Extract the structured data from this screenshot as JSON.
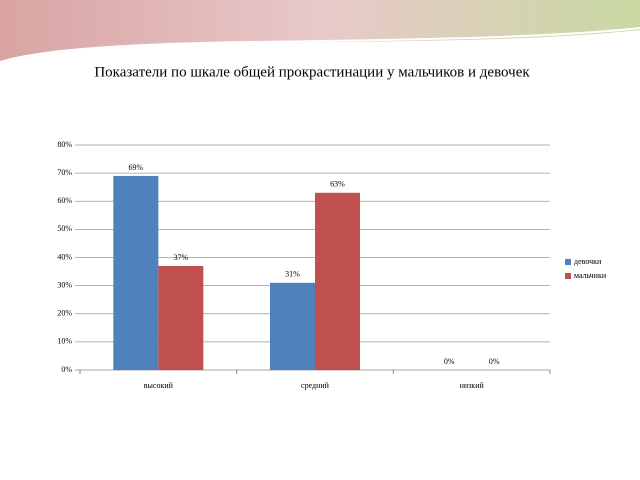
{
  "chart_data": {
    "type": "bar",
    "title": "Показатели по шкале общей прокрастинации у мальчиков и девочек",
    "categories": [
      "высокий",
      "средний",
      "низкий"
    ],
    "series": [
      {
        "name": "девочки",
        "color": "#4f81bd",
        "values": [
          69,
          31,
          0
        ],
        "value_labels": [
          "69%",
          "31%",
          "0%"
        ]
      },
      {
        "name": "мальчики",
        "color": "#c0504d",
        "values": [
          37,
          63,
          0
        ],
        "value_labels": [
          "37%",
          "63%",
          "0%"
        ]
      }
    ],
    "ylim": [
      0,
      80
    ],
    "yticks": [
      {
        "value": 0,
        "label": "0%"
      },
      {
        "value": 10,
        "label": "10%"
      },
      {
        "value": 20,
        "label": "20%"
      },
      {
        "value": 30,
        "label": "30%"
      },
      {
        "value": 40,
        "label": "40%"
      },
      {
        "value": 50,
        "label": "50%"
      },
      {
        "value": 60,
        "label": "60%"
      },
      {
        "value": 70,
        "label": "70%"
      },
      {
        "value": 80,
        "label": "80%"
      }
    ],
    "grid": true,
    "legend": "right"
  }
}
